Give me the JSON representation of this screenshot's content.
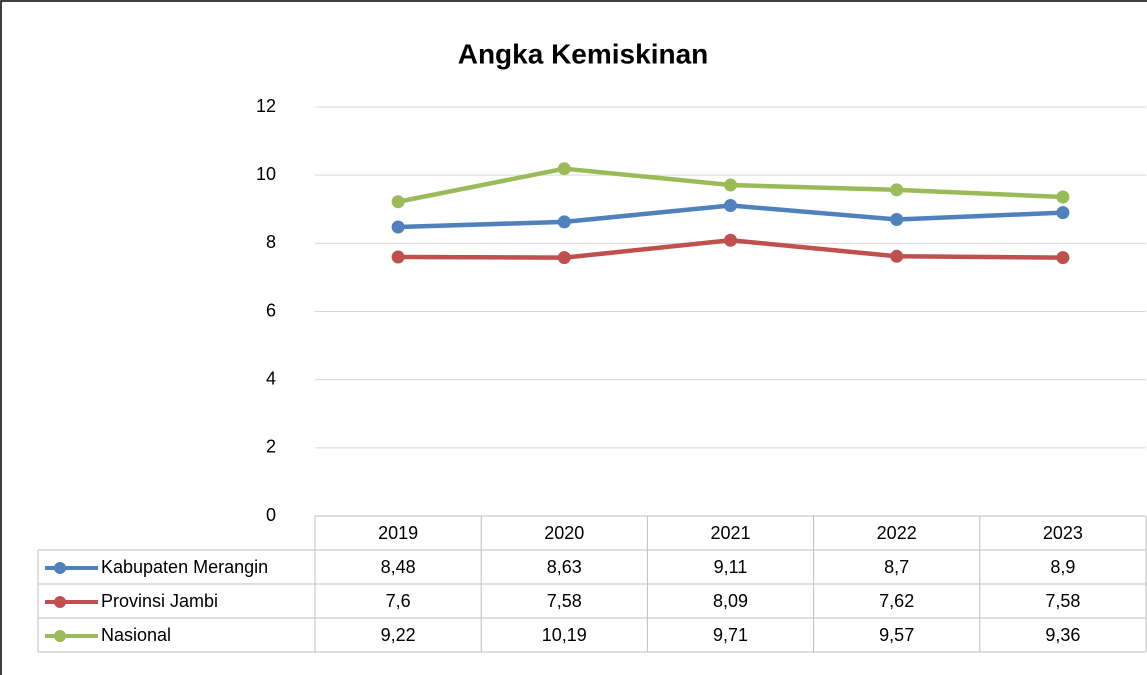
{
  "chart_data": {
    "type": "line",
    "title": "Angka Kemiskinan",
    "categories": [
      "2019",
      "2020",
      "2021",
      "2022",
      "2023"
    ],
    "series": [
      {
        "name": "Kabupaten Merangin",
        "color": "#4f81bd",
        "values": [
          8.48,
          8.63,
          9.11,
          8.7,
          8.9
        ],
        "value_labels": [
          "8,48",
          "8,63",
          "9,11",
          "8,7",
          "8,9"
        ]
      },
      {
        "name": "Provinsi Jambi",
        "color": "#c0504d",
        "values": [
          7.6,
          7.58,
          8.09,
          7.62,
          7.58
        ],
        "value_labels": [
          "7,6",
          "7,58",
          "8,09",
          "7,62",
          "7,58"
        ]
      },
      {
        "name": "Nasional",
        "color": "#9bbb59",
        "values": [
          9.22,
          10.19,
          9.71,
          9.57,
          9.36
        ],
        "value_labels": [
          "9,22",
          "10,19",
          "9,71",
          "9,57",
          "9,36"
        ]
      }
    ],
    "ylim": [
      0,
      12
    ],
    "yticks": [
      0,
      2,
      4,
      6,
      8,
      10,
      12
    ],
    "grid": true,
    "data_table": true
  }
}
